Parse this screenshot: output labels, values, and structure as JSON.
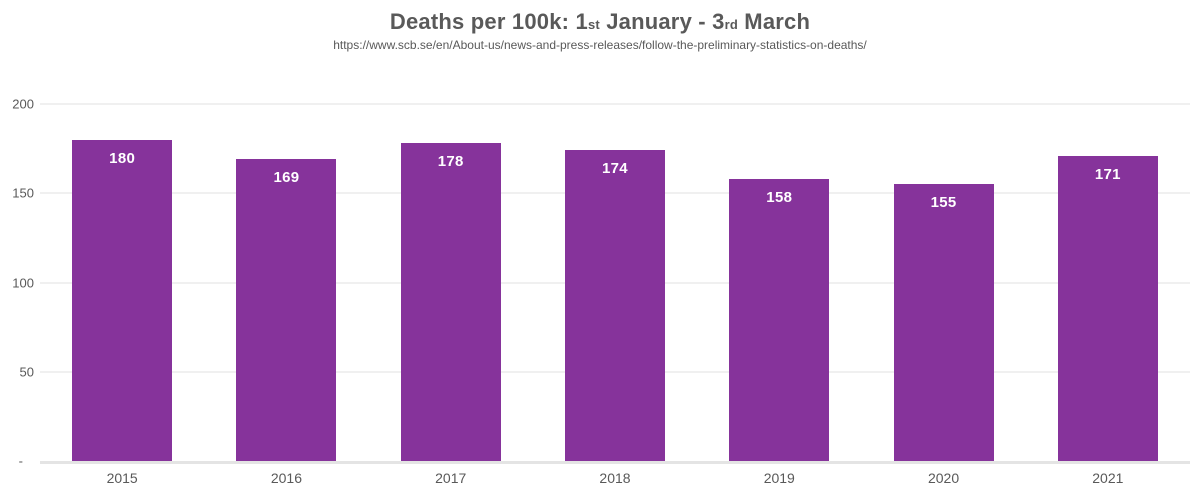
{
  "header": {
    "title": {
      "prefix": "Deaths per 100k: 1",
      "ordinal_1": "st",
      "middle": " January - 3",
      "ordinal_2": "rd",
      "suffix": " March"
    },
    "subtitle_url": "https://www.scb.se/en/About-us/news-and-press-releases/follow-the-preliminary-statistics-on-deaths/"
  },
  "chart_data": {
    "type": "bar",
    "title": "Deaths per 100k: 1st January - 3rd March",
    "subtitle": "https://www.scb.se/en/About-us/news-and-press-releases/follow-the-preliminary-statistics-on-deaths/",
    "categories": [
      "2015",
      "2016",
      "2017",
      "2018",
      "2019",
      "2020",
      "2021"
    ],
    "values": [
      180,
      169,
      178,
      174,
      158,
      155,
      171
    ],
    "xlabel": "",
    "ylabel": "",
    "ylim": [
      0,
      200
    ],
    "yticks": [
      200,
      150,
      100,
      50
    ],
    "ytick_zero_label": "-",
    "grid": true,
    "legend_position": "none",
    "bar_color": "#86339B",
    "value_label_color": "#FFFFFF",
    "axis_text_color": "#595959",
    "title_color": "#595959",
    "gridline_color": "#F0F0F0",
    "baseline_color": "#E4E4E4"
  }
}
